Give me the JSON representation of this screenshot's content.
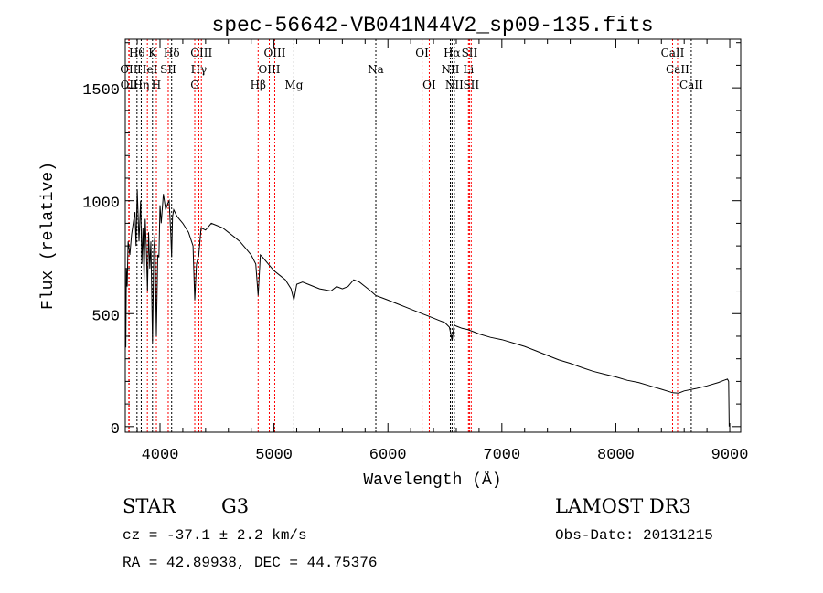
{
  "chart_data": {
    "type": "line",
    "title": "spec-56642-VB041N44V2_sp09-135.fits",
    "xlabel": "Wavelength (Å)",
    "ylabel": "Flux (relative)",
    "xlim": [
      3695,
      9096
    ],
    "ylim": [
      -25,
      1715
    ],
    "xticks": [
      4000,
      5000,
      6000,
      7000,
      8000,
      9000
    ],
    "yticks": [
      0,
      500,
      1000,
      1500
    ],
    "grid": false,
    "series": [
      {
        "name": "spectrum",
        "x": [
          3700,
          3705,
          3712,
          3720,
          3735,
          3750,
          3765,
          3780,
          3790,
          3800,
          3815,
          3830,
          3840,
          3850,
          3860,
          3870,
          3880,
          3890,
          3900,
          3910,
          3920,
          3934,
          3945,
          3955,
          3968,
          3980,
          3990,
          4000,
          4010,
          4030,
          4050,
          4070,
          4080,
          4095,
          4102,
          4110,
          4120,
          4150,
          4200,
          4250,
          4290,
          4305,
          4320,
          4340,
          4360,
          4400,
          4450,
          4500,
          4550,
          4600,
          4650,
          4700,
          4750,
          4800,
          4840,
          4861,
          4880,
          4900,
          4950,
          5000,
          5050,
          5100,
          5150,
          5175,
          5200,
          5250,
          5300,
          5350,
          5400,
          5450,
          5500,
          5550,
          5600,
          5650,
          5700,
          5750,
          5800,
          5850,
          5894,
          5950,
          6000,
          6050,
          6100,
          6150,
          6200,
          6250,
          6300,
          6350,
          6400,
          6450,
          6500,
          6540,
          6563,
          6580,
          6600,
          6650,
          6700,
          6750,
          6800,
          6900,
          7000,
          7100,
          7200,
          7300,
          7400,
          7500,
          7600,
          7700,
          7800,
          7900,
          8000,
          8100,
          8200,
          8300,
          8400,
          8500,
          8550,
          8600,
          8700,
          8800,
          8900,
          8950,
          8980,
          8990,
          8995
        ],
        "y": [
          350,
          700,
          620,
          820,
          760,
          850,
          900,
          950,
          800,
          1050,
          820,
          1000,
          720,
          880,
          650,
          920,
          780,
          600,
          860,
          700,
          820,
          370,
          780,
          850,
          400,
          760,
          750,
          980,
          900,
          1030,
          960,
          990,
          1000,
          850,
          750,
          930,
          960,
          930,
          900,
          860,
          800,
          560,
          720,
          760,
          880,
          870,
          900,
          890,
          880,
          860,
          840,
          820,
          790,
          760,
          720,
          580,
          760,
          750,
          720,
          690,
          670,
          650,
          610,
          560,
          630,
          640,
          630,
          620,
          610,
          605,
          600,
          620,
          610,
          620,
          650,
          640,
          620,
          600,
          580,
          570,
          560,
          550,
          540,
          530,
          520,
          510,
          500,
          490,
          480,
          470,
          460,
          440,
          380,
          450,
          445,
          435,
          430,
          420,
          410,
          395,
          385,
          370,
          355,
          335,
          315,
          295,
          280,
          262,
          245,
          232,
          220,
          205,
          195,
          180,
          165,
          150,
          148,
          158,
          168,
          180,
          195,
          205,
          210,
          200,
          0
        ]
      }
    ],
    "lines": [
      {
        "label": "OII",
        "wl": 3726,
        "color": "#ff0000",
        "row": 2
      },
      {
        "label": "OII",
        "wl": 3729,
        "color": "#ff0000",
        "row": 3
      },
      {
        "label": "Hθ",
        "wl": 3798,
        "color": "#000000",
        "row": 1
      },
      {
        "label": "Hη",
        "wl": 3835,
        "color": "#000000",
        "row": 3
      },
      {
        "label": "HeI",
        "wl": 3889,
        "color": "#ff0000",
        "row": 2
      },
      {
        "label": "K",
        "wl": 3934,
        "color": "#000000",
        "row": 1
      },
      {
        "label": "H",
        "wl": 3968,
        "color": "#ff0000",
        "row": 3
      },
      {
        "label": "SII",
        "wl": 4072,
        "color": "#ff0000",
        "row": 2
      },
      {
        "label": "Hδ",
        "wl": 4102,
        "color": "#000000",
        "row": 1
      },
      {
        "label": "G",
        "wl": 4305,
        "color": "#ff0000",
        "row": 3
      },
      {
        "label": "Hγ",
        "wl": 4341,
        "color": "#ff0000",
        "row": 2
      },
      {
        "label": "OIII",
        "wl": 4363,
        "color": "#ff0000",
        "row": 1
      },
      {
        "label": "Hβ",
        "wl": 4861,
        "color": "#ff0000",
        "row": 3
      },
      {
        "label": "OIII",
        "wl": 4959,
        "color": "#ff0000",
        "row": 2
      },
      {
        "label": "OIII",
        "wl": 5007,
        "color": "#ff0000",
        "row": 1
      },
      {
        "label": "Mg",
        "wl": 5175,
        "color": "#000000",
        "row": 3
      },
      {
        "label": "Na",
        "wl": 5894,
        "color": "#000000",
        "row": 2
      },
      {
        "label": "OI",
        "wl": 6300,
        "color": "#ff0000",
        "row": 1
      },
      {
        "label": "OI",
        "wl": 6363,
        "color": "#ff0000",
        "row": 3
      },
      {
        "label": "NII",
        "wl": 6548,
        "color": "#000000",
        "row": 2
      },
      {
        "label": "Hα",
        "wl": 6563,
        "color": "#000000",
        "row": 1
      },
      {
        "label": "NII",
        "wl": 6583,
        "color": "#000000",
        "row": 3
      },
      {
        "label": "Li",
        "wl": 6707,
        "color": "#ff0000",
        "row": 2
      },
      {
        "label": "SII",
        "wl": 6716,
        "color": "#ff0000",
        "row": 1
      },
      {
        "label": "SII",
        "wl": 6731,
        "color": "#ff0000",
        "row": 3
      },
      {
        "label": "CaII",
        "wl": 8498,
        "color": "#ff0000",
        "row": 1
      },
      {
        "label": "CaII",
        "wl": 8542,
        "color": "#ff0000",
        "row": 2
      },
      {
        "label": "CaII",
        "wl": 8662,
        "color": "#000000",
        "row": 3
      }
    ]
  },
  "info": {
    "class": "STAR",
    "subclass": "G3",
    "cz": "cz = -37.1 ± 2.2 km/s",
    "coords": "RA =  42.89938, DEC =  44.75376",
    "survey": "LAMOST DR3",
    "obs_date": "Obs-Date: 20131215"
  }
}
